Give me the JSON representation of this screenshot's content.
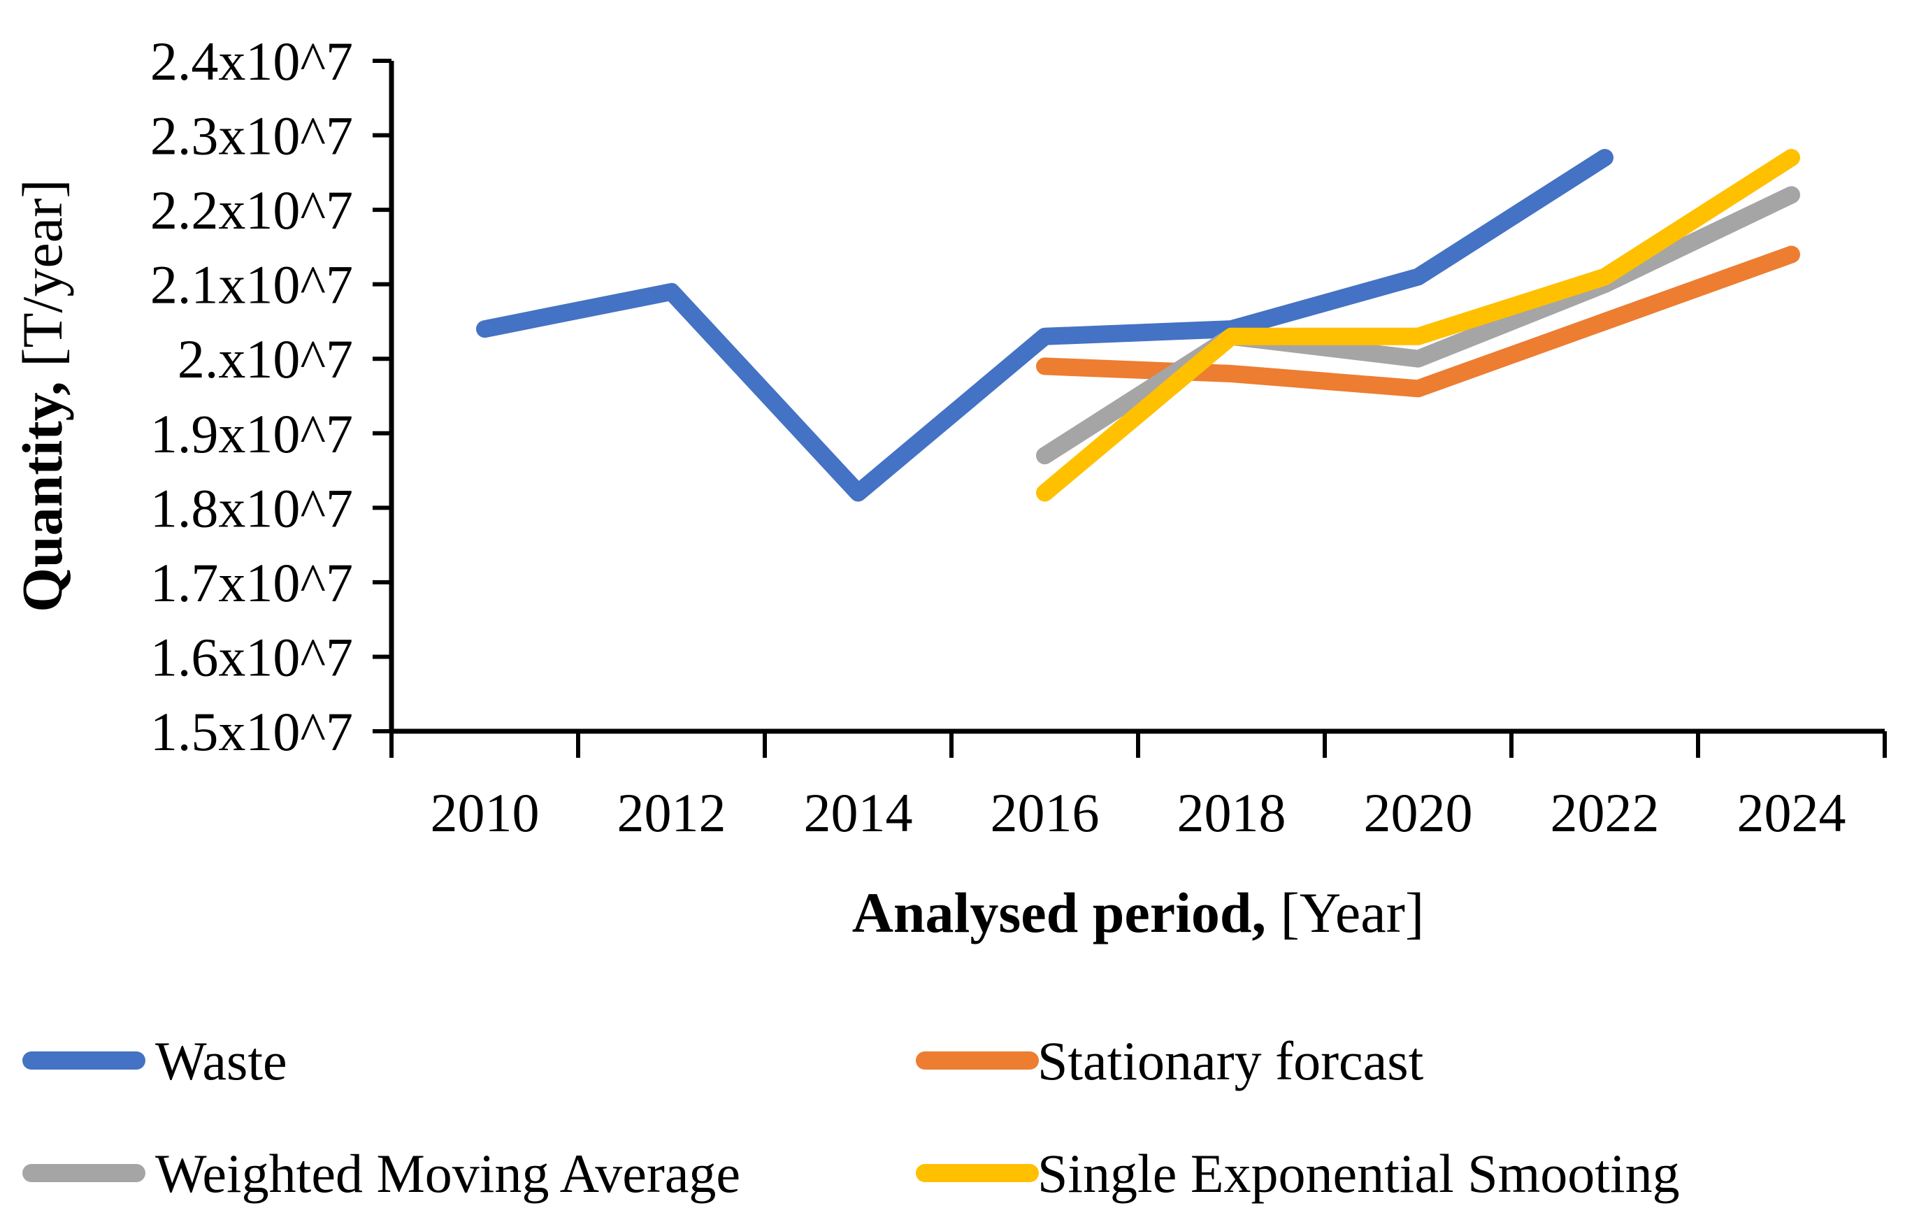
{
  "figure": {
    "background": "#ffffff",
    "axis_color": "#000000",
    "y_axis": {
      "title_bold": "Quantity,",
      "title_regular": " [T/year]",
      "tick_labels": [
        "2.4x10^7",
        "2.3x10^7",
        "2.2x10^7",
        "2.1x10^7",
        "2.x10^7",
        "1.9x10^7",
        "1.8x10^7",
        "1.7x10^7",
        "1.6x10^7",
        "1.5x10^7"
      ]
    },
    "x_axis": {
      "title_bold": "Analysed period,",
      "title_regular": " [Year]",
      "tick_labels": [
        "2010",
        "2012",
        "2014",
        "2016",
        "2018",
        "2020",
        "2022",
        "2024"
      ]
    }
  },
  "chart_data": {
    "type": "line",
    "categories": [
      2010,
      2012,
      2014,
      2016,
      2018,
      2020,
      2022,
      2024
    ],
    "series": [
      {
        "name": "Waste",
        "color": "#4472C4",
        "values": [
          20400000,
          20900000,
          18200000,
          20300000,
          20400000,
          21100000,
          22700000,
          null
        ]
      },
      {
        "name": "Stationary forcast",
        "color": "#ED7D31",
        "values": [
          null,
          null,
          null,
          19900000,
          19800000,
          19600000,
          20500000,
          21400000
        ]
      },
      {
        "name": "Weighted Moving Average",
        "color": "#A5A5A5",
        "values": [
          null,
          null,
          null,
          18700000,
          20300000,
          20000000,
          21000000,
          22200000
        ]
      },
      {
        "name": "Single Exponential Smooting",
        "color": "#FFC000",
        "values": [
          null,
          null,
          null,
          18200000,
          20300000,
          20300000,
          21100000,
          22700000
        ]
      }
    ],
    "title": "",
    "xlabel": "Analysed period, [Year]",
    "ylabel": "Quantity, [T/year]",
    "ylim": [
      15000000,
      24000000
    ],
    "ytick_step": 1000000,
    "grid": false,
    "legend_position": "bottom"
  },
  "legend": {
    "items": [
      {
        "label": "Waste",
        "color": "#4472C4"
      },
      {
        "label": "Stationary forcast",
        "color": "#ED7D31"
      },
      {
        "label": "Weighted Moving Average",
        "color": "#A5A5A5"
      },
      {
        "label": "Single Exponential Smooting",
        "color": "#FFC000"
      }
    ]
  }
}
